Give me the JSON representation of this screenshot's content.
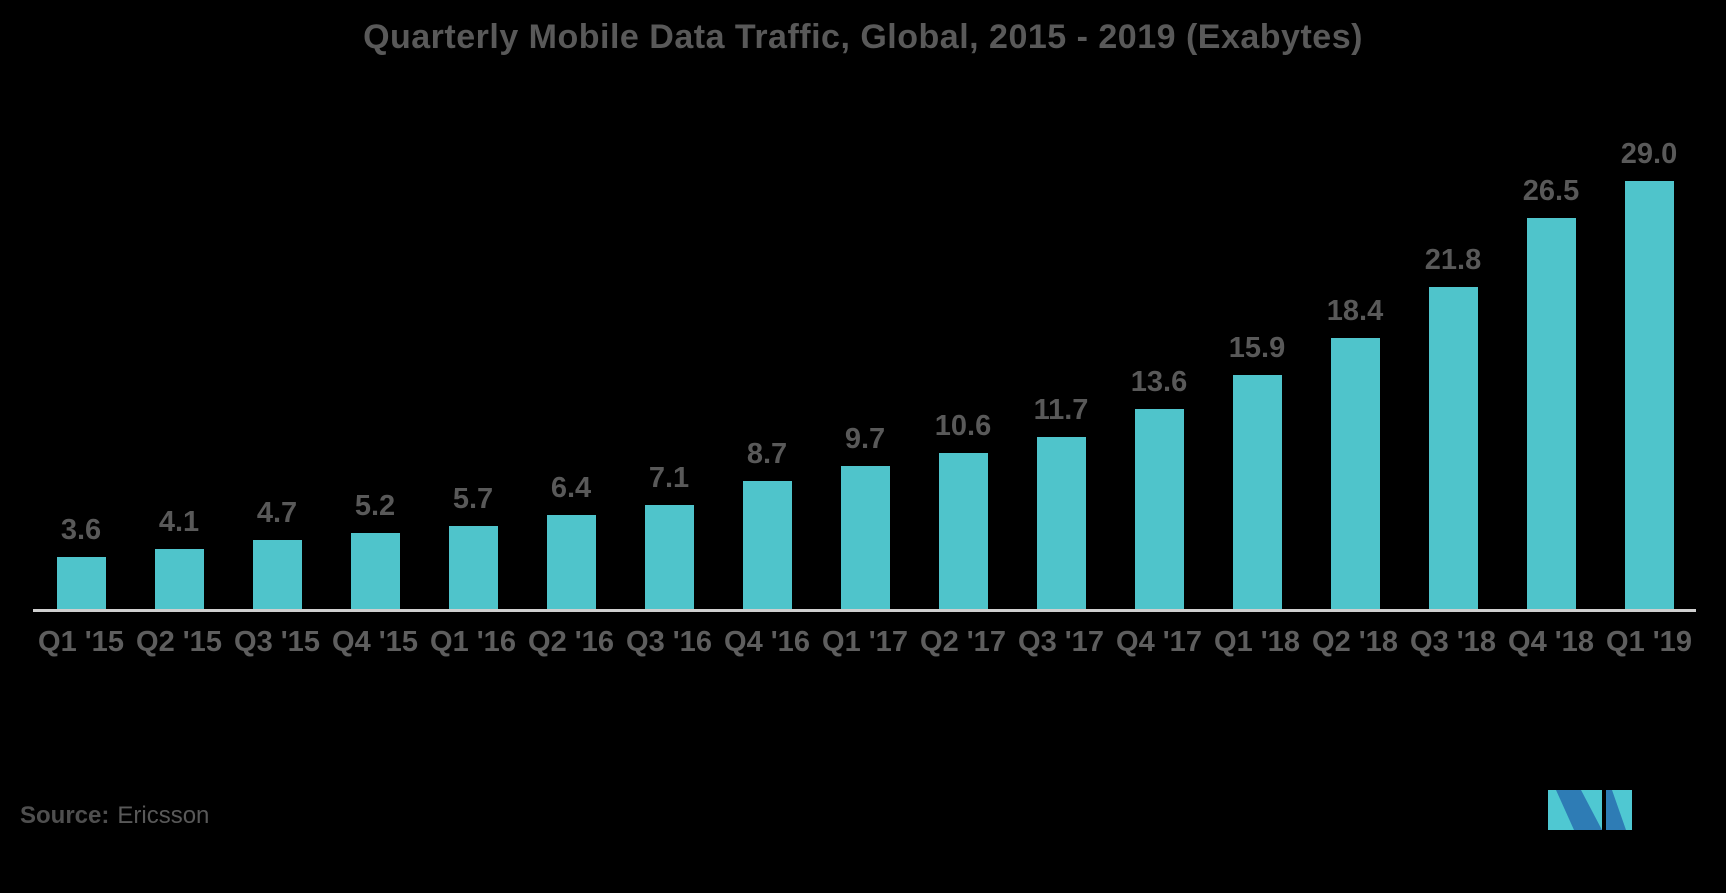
{
  "title": "Quarterly Mobile Data Traffic, Global, 2015 - 2019 (Exabytes)",
  "source": {
    "label": "Source:",
    "name": "Ericsson"
  },
  "logo": {
    "name": "mordor-intelligence-logo",
    "teal": "#4FC8D2",
    "blue": "#2E7CB5"
  },
  "colors": {
    "background": "#000000",
    "bar": "#4FC4CB",
    "title_text": "#595959",
    "label_text": "#595959",
    "axis_line": "#CFCFCF"
  },
  "chart_data": {
    "type": "bar",
    "title": "Quarterly Mobile Data Traffic, Global, 2015 - 2019 (Exabytes)",
    "unit": "Exabytes",
    "categories": [
      "Q1 '15",
      "Q2 '15",
      "Q3 '15",
      "Q4 '15",
      "Q1 '16",
      "Q2 '16",
      "Q3 '16",
      "Q4 '16",
      "Q1 '17",
      "Q2 '17",
      "Q3 '17",
      "Q4 '17",
      "Q1 '18",
      "Q2 '18",
      "Q3 '18",
      "Q4 '18",
      "Q1 '19"
    ],
    "values": [
      3.6,
      4.1,
      4.7,
      5.2,
      5.7,
      6.4,
      7.1,
      8.7,
      9.7,
      10.6,
      11.7,
      13.6,
      15.9,
      18.4,
      21.8,
      26.5,
      29.0
    ],
    "xlabel": "",
    "ylabel": "",
    "ylim": [
      0,
      30
    ],
    "grid": false,
    "legend": false,
    "data_labels": true,
    "data_label_format": "one-decimal"
  }
}
